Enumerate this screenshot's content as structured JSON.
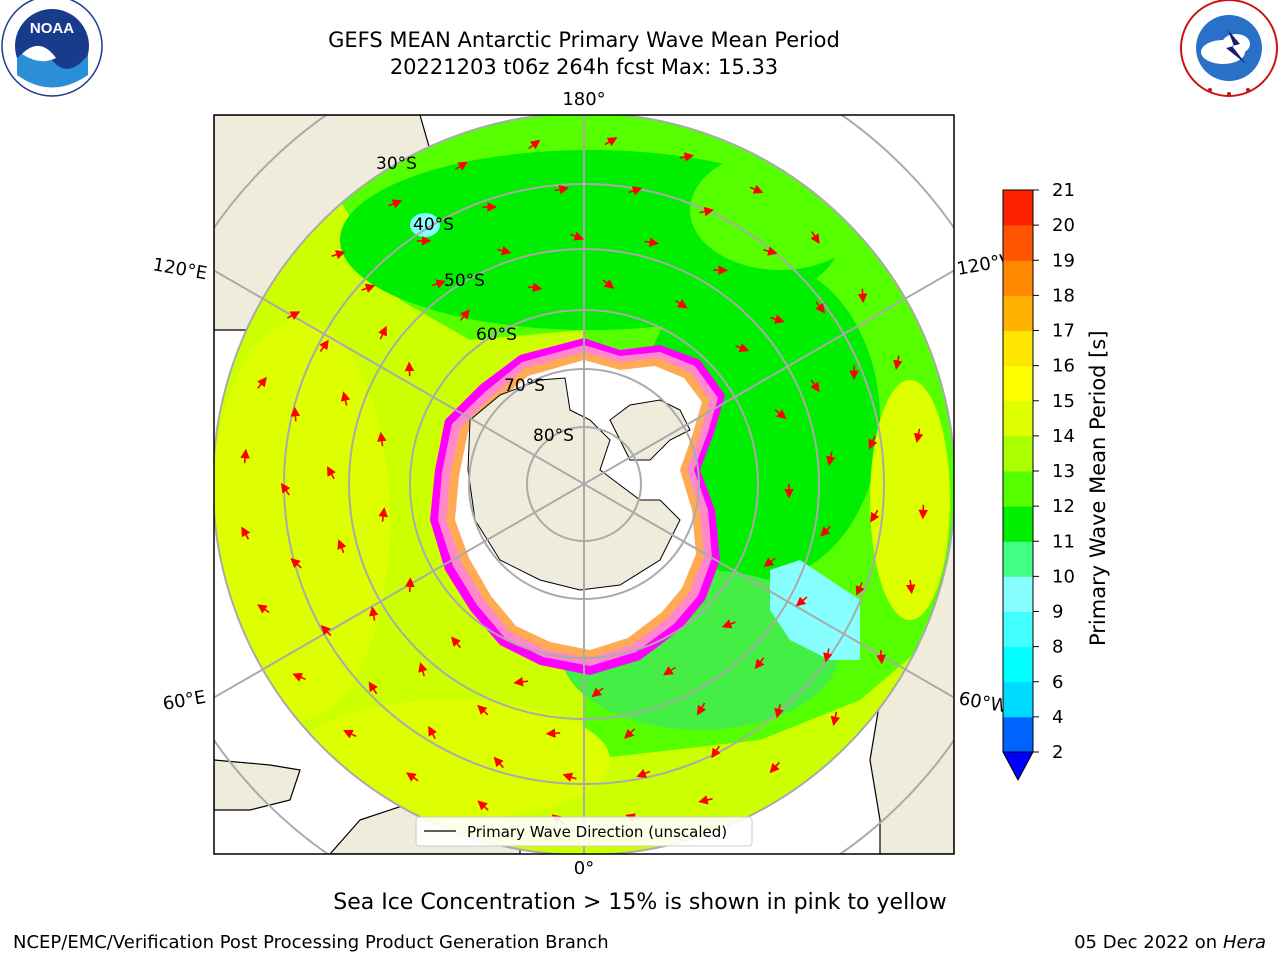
{
  "header": {
    "title_line1": "GEFS MEAN Antarctic Primary Wave Mean Period",
    "title_line2": "20221203 t06z 264h fcst   Max: 15.33"
  },
  "map": {
    "projection": "south-polar-stereographic",
    "lon_labels": {
      "top": "180°",
      "bottom": "0°",
      "upper_left": "120°E",
      "upper_right": "120°W",
      "lower_left": "60°E",
      "lower_right": "60°W"
    },
    "lat_labels": [
      "30°S",
      "40°S",
      "50°S",
      "60°S",
      "70°S",
      "80°S"
    ],
    "legend_label": "Primary Wave Direction (unscaled)",
    "arrow_color": "#ff0000",
    "land_color": "#efecdc",
    "ice_colors": [
      "#ff00ff",
      "#ff88cc",
      "#ffaa55",
      "#ffffff"
    ]
  },
  "chart_data": {
    "type": "heatmap",
    "title": "GEFS MEAN Antarctic Primary Wave Mean Period",
    "variable": "Primary Wave Mean Period [s]",
    "max": 15.33,
    "colorbar": {
      "label": "Primary Wave Mean Period [s]",
      "levels": [
        2,
        4,
        6,
        8,
        9,
        10,
        11,
        12,
        13,
        14,
        15,
        16,
        17,
        18,
        19,
        20,
        21
      ],
      "colors": [
        "#0062ff",
        "#00d9ff",
        "#00ffff",
        "#44ffff",
        "#88ffff",
        "#44ff88",
        "#00ee00",
        "#55ff00",
        "#aaff00",
        "#ddff00",
        "#ffff00",
        "#ffe600",
        "#ffb300",
        "#ff8800",
        "#ff5500",
        "#ff2200"
      ],
      "extend_min_color": "#0000ff"
    }
  },
  "caption": "Sea Ice Concentration > 15% is shown in pink to yellow",
  "footer": {
    "left": "NCEP/EMC/Verification Post Processing Product Generation Branch",
    "right_date": "05 Dec 2022 on",
    "right_host": "Hera"
  },
  "logos": {
    "left": "NOAA",
    "right": "NATIONAL WEATHER SERVICE"
  }
}
